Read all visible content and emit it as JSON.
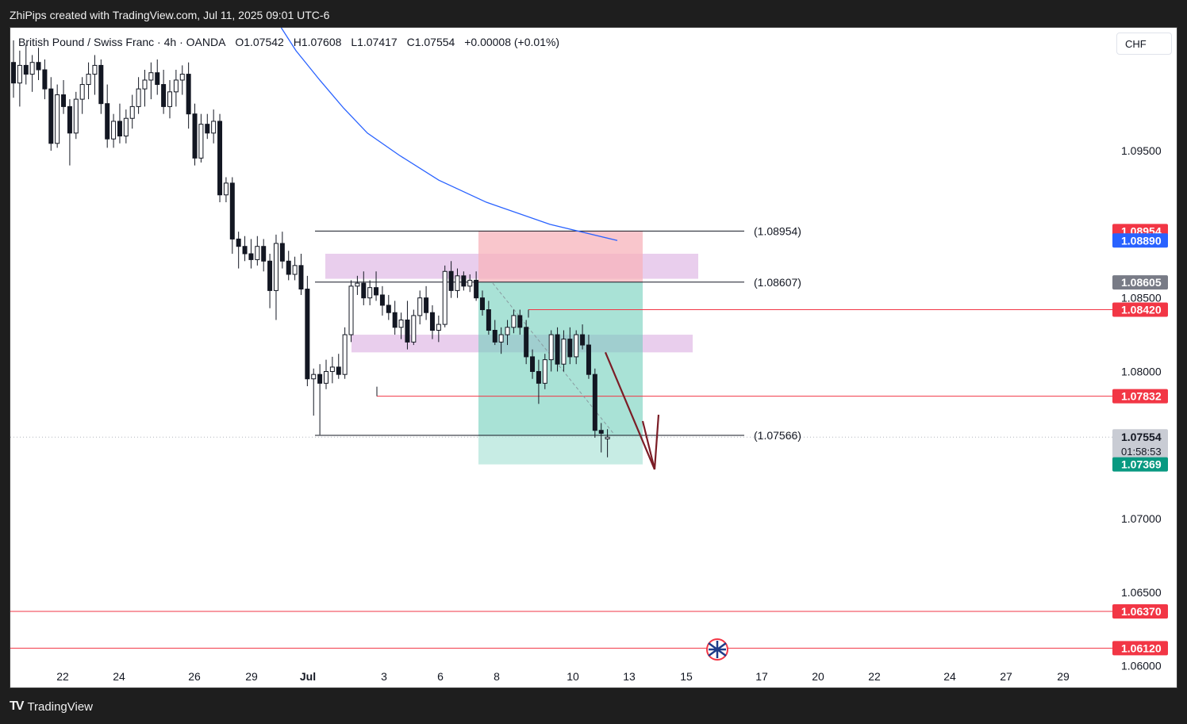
{
  "header": {
    "caption": "ZhiPips created with TradingView.com, Jul 11, 2025 09:01 UTC-6"
  },
  "symbol": {
    "name": "British Pound / Swiss Franc · 4h · OANDA",
    "open": "O1.07542",
    "high": "H1.07608",
    "low": "L1.07417",
    "close": "C1.07554",
    "change": "+0.00008 (+0.01%)"
  },
  "currency_button": "CHF",
  "footer": {
    "logo_mark": "TV",
    "logo_text": "TradingView"
  },
  "colors": {
    "up_candle": "#ffffff",
    "down_candle": "#131722",
    "moving_average": "#2962ff",
    "red_line": "#f23645",
    "stop_zone": "#f7b3bb",
    "target_zone": "#6fcfba",
    "supply_zone": "#ce93d8",
    "arrow": "#7b1d26"
  },
  "chart_data": {
    "type": "candlestick",
    "timeframe": "4h",
    "y_axis": {
      "range": [
        1.0575,
        1.0995
      ],
      "ticks": [
        "1.09500",
        "1.08500",
        "1.08000",
        "1.07000",
        "1.06500",
        "1.06000"
      ]
    },
    "x_axis": {
      "ticks": [
        "22",
        "24",
        "26",
        "29",
        "Jul",
        "3",
        "6",
        "8",
        "10",
        "13",
        "15",
        "17",
        "20",
        "22",
        "24",
        "27",
        "29"
      ]
    },
    "price_tags": [
      {
        "value": "1.08954",
        "color": "#f23645"
      },
      {
        "value": "1.08890",
        "color": "#2962ff"
      },
      {
        "value": "1.08605",
        "color": "#787b86"
      },
      {
        "value": "1.08420",
        "color": "#f23645"
      },
      {
        "value": "1.07832",
        "color": "#f23645"
      },
      {
        "value": "1.07554",
        "color": "#c9ccd4",
        "countdown": "01:58:53"
      },
      {
        "value": "1.07369",
        "color": "#089981"
      },
      {
        "value": "1.06370",
        "color": "#f23645"
      },
      {
        "value": "1.06120",
        "color": "#f23645"
      }
    ],
    "level_labels": [
      {
        "text": "(1.08954)",
        "price": 1.08954
      },
      {
        "text": "(1.08607)",
        "price": 1.08607
      },
      {
        "text": "(1.07566)",
        "price": 1.07566
      }
    ],
    "horizontal_lines": [
      {
        "price": 1.0842,
        "from_date": "Jul 8",
        "color": "red"
      },
      {
        "price": 1.07832,
        "from_date": "Jul 2",
        "color": "red"
      },
      {
        "price": 1.0637,
        "from_date": "chart start",
        "color": "red"
      },
      {
        "price": 1.0612,
        "from_date": "chart start",
        "color": "red"
      }
    ],
    "zones": [
      {
        "kind": "supply",
        "price_top": 1.088,
        "price_bottom": 1.0863
      },
      {
        "kind": "supply",
        "price_top": 1.0825,
        "price_bottom": 1.0813
      },
      {
        "kind": "short-stop",
        "price_top": 1.08954,
        "price_bottom": 1.08607
      },
      {
        "kind": "short-target",
        "price_top": 1.08607,
        "price_bottom": 1.07369
      }
    ],
    "moving_average": [
      1.1039,
      1.1018,
      1.0998,
      1.0979,
      1.0962,
      1.0947,
      1.093,
      1.0915,
      1.09,
      1.0889
    ],
    "candles": [
      {
        "o": 1.101,
        "h": 1.1025,
        "l": 1.0986,
        "c": 1.0996
      },
      {
        "o": 1.0996,
        "h": 1.1018,
        "l": 1.098,
        "c": 1.1008
      },
      {
        "o": 1.1008,
        "h": 1.1022,
        "l": 1.0995,
        "c": 1.1002
      },
      {
        "o": 1.1002,
        "h": 1.1015,
        "l": 1.099,
        "c": 1.101
      },
      {
        "o": 1.101,
        "h": 1.102,
        "l": 1.0998,
        "c": 1.1005
      },
      {
        "o": 1.1005,
        "h": 1.1012,
        "l": 1.0985,
        "c": 1.0992
      },
      {
        "o": 1.0992,
        "h": 1.1,
        "l": 1.095,
        "c": 1.0955
      },
      {
        "o": 1.0955,
        "h": 1.0995,
        "l": 1.0952,
        "c": 1.0988
      },
      {
        "o": 1.0988,
        "h": 1.0998,
        "l": 1.0975,
        "c": 1.098
      },
      {
        "o": 1.098,
        "h": 1.0985,
        "l": 1.094,
        "c": 1.0962
      },
      {
        "o": 1.0962,
        "h": 1.099,
        "l": 1.0958,
        "c": 1.0985
      },
      {
        "o": 1.0985,
        "h": 1.1,
        "l": 1.0975,
        "c": 1.0995
      },
      {
        "o": 1.0995,
        "h": 1.101,
        "l": 1.0985,
        "c": 1.1002
      },
      {
        "o": 1.1002,
        "h": 1.1015,
        "l": 1.0988,
        "c": 1.1008
      },
      {
        "o": 1.1008,
        "h": 1.1012,
        "l": 1.0975,
        "c": 1.0982
      },
      {
        "o": 1.0982,
        "h": 1.0995,
        "l": 1.0952,
        "c": 1.0958
      },
      {
        "o": 1.0958,
        "h": 1.0975,
        "l": 1.0952,
        "c": 1.097
      },
      {
        "o": 1.097,
        "h": 1.0982,
        "l": 1.0955,
        "c": 1.096
      },
      {
        "o": 1.096,
        "h": 1.0978,
        "l": 1.0955,
        "c": 1.0972
      },
      {
        "o": 1.0972,
        "h": 1.0988,
        "l": 1.0965,
        "c": 1.098
      },
      {
        "o": 1.098,
        "h": 1.1,
        "l": 1.0975,
        "c": 1.0992
      },
      {
        "o": 1.0992,
        "h": 1.1005,
        "l": 1.098,
        "c": 1.0998
      },
      {
        "o": 1.0998,
        "h": 1.101,
        "l": 1.0985,
        "c": 1.1003
      },
      {
        "o": 1.1003,
        "h": 1.1012,
        "l": 1.0988,
        "c": 1.0995
      },
      {
        "o": 1.0995,
        "h": 1.1005,
        "l": 1.0975,
        "c": 1.098
      },
      {
        "o": 1.098,
        "h": 1.0998,
        "l": 1.0972,
        "c": 1.099
      },
      {
        "o": 1.099,
        "h": 1.1005,
        "l": 1.098,
        "c": 1.0998
      },
      {
        "o": 1.0998,
        "h": 1.1008,
        "l": 1.0988,
        "c": 1.1002
      },
      {
        "o": 1.1002,
        "h": 1.101,
        "l": 1.0965,
        "c": 1.0975
      },
      {
        "o": 1.0975,
        "h": 1.0982,
        "l": 1.094,
        "c": 1.0945
      },
      {
        "o": 1.0945,
        "h": 1.0975,
        "l": 1.0942,
        "c": 1.0968
      },
      {
        "o": 1.0968,
        "h": 1.0975,
        "l": 1.0958,
        "c": 1.0962
      },
      {
        "o": 1.0962,
        "h": 1.0978,
        "l": 1.0955,
        "c": 1.097
      },
      {
        "o": 1.097,
        "h": 1.0975,
        "l": 1.0915,
        "c": 1.092
      },
      {
        "o": 1.092,
        "h": 1.0932,
        "l": 1.0915,
        "c": 1.0928
      },
      {
        "o": 1.0928,
        "h": 1.0932,
        "l": 1.088,
        "c": 1.089
      },
      {
        "o": 1.089,
        "h": 1.0895,
        "l": 1.087,
        "c": 1.0885
      },
      {
        "o": 1.0885,
        "h": 1.0892,
        "l": 1.0875,
        "c": 1.088
      },
      {
        "o": 1.088,
        "h": 1.089,
        "l": 1.087,
        "c": 1.0876
      },
      {
        "o": 1.0876,
        "h": 1.0892,
        "l": 1.0872,
        "c": 1.0885
      },
      {
        "o": 1.0885,
        "h": 1.089,
        "l": 1.0868,
        "c": 1.0875
      },
      {
        "o": 1.0875,
        "h": 1.088,
        "l": 1.0843,
        "c": 1.0855
      },
      {
        "o": 1.0855,
        "h": 1.0893,
        "l": 1.0835,
        "c": 1.0887
      },
      {
        "o": 1.0887,
        "h": 1.0895,
        "l": 1.087,
        "c": 1.0875
      },
      {
        "o": 1.0875,
        "h": 1.0882,
        "l": 1.0862,
        "c": 1.0866
      },
      {
        "o": 1.0866,
        "h": 1.0878,
        "l": 1.0862,
        "c": 1.0872
      },
      {
        "o": 1.0872,
        "h": 1.088,
        "l": 1.0852,
        "c": 1.0856
      },
      {
        "o": 1.0856,
        "h": 1.0865,
        "l": 1.079,
        "c": 1.0795
      },
      {
        "o": 1.0795,
        "h": 1.0802,
        "l": 1.077,
        "c": 1.0798
      },
      {
        "o": 1.0798,
        "h": 1.0805,
        "l": 1.0757,
        "c": 1.0792
      },
      {
        "o": 1.0792,
        "h": 1.0808,
        "l": 1.0788,
        "c": 1.08
      },
      {
        "o": 1.08,
        "h": 1.081,
        "l": 1.0792,
        "c": 1.0803
      },
      {
        "o": 1.0803,
        "h": 1.0812,
        "l": 1.0795,
        "c": 1.0798
      },
      {
        "o": 1.0798,
        "h": 1.083,
        "l": 1.0795,
        "c": 1.0825
      },
      {
        "o": 1.0825,
        "h": 1.0862,
        "l": 1.082,
        "c": 1.0858
      },
      {
        "o": 1.0858,
        "h": 1.0865,
        "l": 1.0852,
        "c": 1.086
      },
      {
        "o": 1.086,
        "h": 1.0868,
        "l": 1.0845,
        "c": 1.085
      },
      {
        "o": 1.085,
        "h": 1.0862,
        "l": 1.0845,
        "c": 1.0857
      },
      {
        "o": 1.0857,
        "h": 1.0868,
        "l": 1.0848,
        "c": 1.0852
      },
      {
        "o": 1.0852,
        "h": 1.0858,
        "l": 1.0838,
        "c": 1.0845
      },
      {
        "o": 1.0845,
        "h": 1.0852,
        "l": 1.0835,
        "c": 1.084
      },
      {
        "o": 1.084,
        "h": 1.0848,
        "l": 1.0825,
        "c": 1.083
      },
      {
        "o": 1.083,
        "h": 1.084,
        "l": 1.0822,
        "c": 1.0835
      },
      {
        "o": 1.0835,
        "h": 1.0848,
        "l": 1.0815,
        "c": 1.082
      },
      {
        "o": 1.082,
        "h": 1.0842,
        "l": 1.0818,
        "c": 1.0838
      },
      {
        "o": 1.0838,
        "h": 1.0855,
        "l": 1.0832,
        "c": 1.085
      },
      {
        "o": 1.085,
        "h": 1.0858,
        "l": 1.0835,
        "c": 1.084
      },
      {
        "o": 1.084,
        "h": 1.0845,
        "l": 1.0822,
        "c": 1.0828
      },
      {
        "o": 1.0828,
        "h": 1.0838,
        "l": 1.082,
        "c": 1.0832
      },
      {
        "o": 1.0832,
        "h": 1.0872,
        "l": 1.083,
        "c": 1.0868
      },
      {
        "o": 1.0868,
        "h": 1.0875,
        "l": 1.085,
        "c": 1.0855
      },
      {
        "o": 1.0855,
        "h": 1.087,
        "l": 1.085,
        "c": 1.0865
      },
      {
        "o": 1.0865,
        "h": 1.0868,
        "l": 1.0855,
        "c": 1.0858
      },
      {
        "o": 1.0858,
        "h": 1.0866,
        "l": 1.0854,
        "c": 1.0862
      },
      {
        "o": 1.0862,
        "h": 1.0868,
        "l": 1.0848,
        "c": 1.085
      },
      {
        "o": 1.085,
        "h": 1.0855,
        "l": 1.0838,
        "c": 1.0842
      },
      {
        "o": 1.0842,
        "h": 1.0848,
        "l": 1.0825,
        "c": 1.0828
      },
      {
        "o": 1.0828,
        "h": 1.0835,
        "l": 1.0818,
        "c": 1.082
      },
      {
        "o": 1.082,
        "h": 1.083,
        "l": 1.0812,
        "c": 1.0825
      },
      {
        "o": 1.0825,
        "h": 1.0835,
        "l": 1.0818,
        "c": 1.083
      },
      {
        "o": 1.083,
        "h": 1.0842,
        "l": 1.0826,
        "c": 1.0838
      },
      {
        "o": 1.0838,
        "h": 1.0842,
        "l": 1.0825,
        "c": 1.083
      },
      {
        "o": 1.083,
        "h": 1.0835,
        "l": 1.0805,
        "c": 1.081
      },
      {
        "o": 1.081,
        "h": 1.0815,
        "l": 1.0795,
        "c": 1.08
      },
      {
        "o": 1.08,
        "h": 1.0808,
        "l": 1.0778,
        "c": 1.0792
      },
      {
        "o": 1.0792,
        "h": 1.0812,
        "l": 1.0788,
        "c": 1.0808
      },
      {
        "o": 1.0808,
        "h": 1.0828,
        "l": 1.08,
        "c": 1.0825
      },
      {
        "o": 1.0825,
        "h": 1.083,
        "l": 1.08,
        "c": 1.0805
      },
      {
        "o": 1.0805,
        "h": 1.0828,
        "l": 1.08,
        "c": 1.0822
      },
      {
        "o": 1.0822,
        "h": 1.083,
        "l": 1.0805,
        "c": 1.081
      },
      {
        "o": 1.081,
        "h": 1.0828,
        "l": 1.0805,
        "c": 1.0825
      },
      {
        "o": 1.0825,
        "h": 1.0832,
        "l": 1.0815,
        "c": 1.0818
      },
      {
        "o": 1.0818,
        "h": 1.0825,
        "l": 1.0795,
        "c": 1.0798
      },
      {
        "o": 1.0798,
        "h": 1.0802,
        "l": 1.0755,
        "c": 1.076
      },
      {
        "o": 1.076,
        "h": 1.0765,
        "l": 1.0745,
        "c": 1.0758
      },
      {
        "o": 1.07542,
        "h": 1.07608,
        "l": 1.07417,
        "c": 1.07554
      }
    ]
  }
}
